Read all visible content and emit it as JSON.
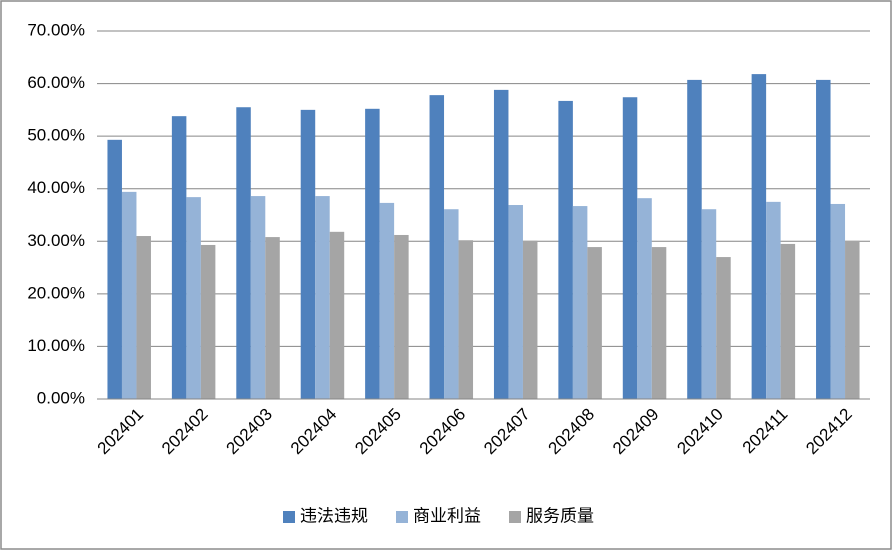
{
  "chart_data": {
    "type": "bar",
    "categories": [
      "202401",
      "202402",
      "202403",
      "202404",
      "202405",
      "202406",
      "202407",
      "202408",
      "202409",
      "202410",
      "202411",
      "202412"
    ],
    "series": [
      {
        "name": "违法违规",
        "color": "#4f81bd",
        "values": [
          49.3,
          53.8,
          55.5,
          55.0,
          55.2,
          57.8,
          58.8,
          56.7,
          57.4,
          60.7,
          61.8,
          60.7
        ]
      },
      {
        "name": "商业利益",
        "color": "#95b3d7",
        "values": [
          39.4,
          38.4,
          38.6,
          38.6,
          37.3,
          36.1,
          36.9,
          36.7,
          38.2,
          36.1,
          37.5,
          37.1
        ]
      },
      {
        "name": "服务质量",
        "color": "#a5a5a5",
        "values": [
          31.0,
          29.3,
          30.8,
          31.8,
          31.2,
          30.2,
          30.1,
          28.9,
          28.9,
          27.0,
          29.5,
          30.1
        ]
      }
    ],
    "ylim": [
      0,
      70
    ],
    "yticks": [
      {
        "value": 0,
        "label": "0.00%"
      },
      {
        "value": 10,
        "label": "10.00%"
      },
      {
        "value": 20,
        "label": "20.00%"
      },
      {
        "value": 30,
        "label": "30.00%"
      },
      {
        "value": 40,
        "label": "40.00%"
      },
      {
        "value": 50,
        "label": "50.00%"
      },
      {
        "value": 60,
        "label": "60.00%"
      },
      {
        "value": 70,
        "label": "70.00%"
      }
    ],
    "grid": true,
    "legend": "bottom"
  }
}
